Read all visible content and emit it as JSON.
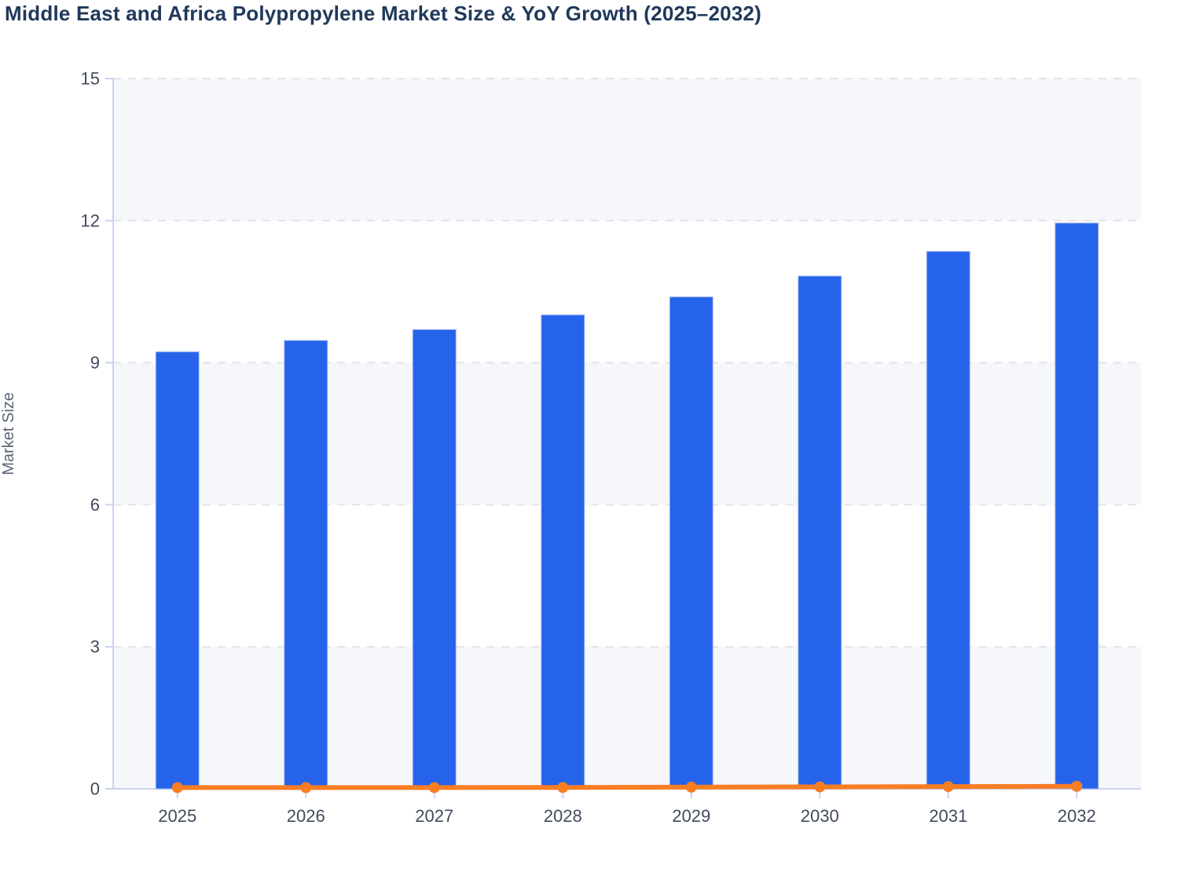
{
  "title": "Middle East and Africa Polypropylene Market Size & YoY Growth (2025–2032)",
  "chart_data": {
    "type": "bar",
    "title": "Middle East and Africa Polypropylene Market Size & YoY Growth (2025–2032)",
    "categories": [
      "2025",
      "2026",
      "2027",
      "2028",
      "2029",
      "2030",
      "2031",
      "2032"
    ],
    "series": [
      {
        "name": "Market Size",
        "type": "bar",
        "color": "#2563eb",
        "values": [
          9.23,
          9.47,
          9.7,
          10.01,
          10.39,
          10.83,
          11.35,
          11.95
        ]
      },
      {
        "name": "YoY Growth",
        "type": "line",
        "color": "#f87d23",
        "values": [
          0.027,
          0.027,
          0.028,
          0.03,
          0.037,
          0.042,
          0.048,
          0.054
        ]
      }
    ],
    "xlabel": "",
    "ylabel": "Market Size",
    "y_ticks": [
      0,
      3,
      6,
      9,
      12,
      15
    ],
    "ylim": [
      0,
      15
    ],
    "grid": "horizontal-dashed",
    "legend": "none",
    "background_bands": "alternating"
  },
  "colors": {
    "title_text": "#20395a",
    "bar_fill": "#2563eb",
    "bar_stroke": "#a8bcf4",
    "line_stroke": "#f87d23",
    "axis_line": "#c9d3f2",
    "gridline": "#e2e4ea",
    "band_gray": "#f6f7fa",
    "band_white": "#ffffff",
    "tick_label_text": "#414b5e",
    "axis_title_text": "#5a6477"
  }
}
